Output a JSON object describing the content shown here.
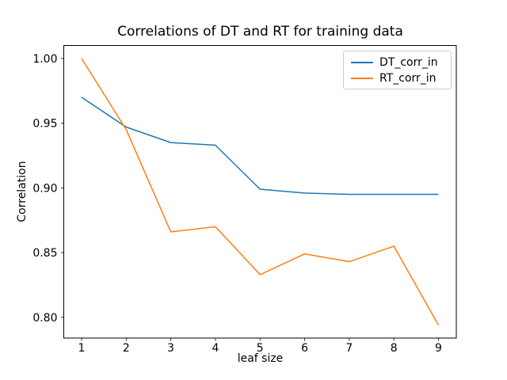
{
  "figure": {
    "background": "#ffffff",
    "axes_edge_color": "#000000",
    "text_color": "#000000",
    "legend_border_color": "#cccccc"
  },
  "chart_data": {
    "type": "line",
    "title": "Correlations of DT and RT for training data",
    "xlabel": "leaf size",
    "ylabel": "Correlation",
    "x": [
      1,
      2,
      3,
      4,
      5,
      6,
      7,
      8,
      9
    ],
    "series": [
      {
        "name": "DT_corr_in",
        "color": "#1f77b4",
        "values": [
          0.97,
          0.947,
          0.935,
          0.933,
          0.899,
          0.896,
          0.895,
          0.895,
          0.895
        ]
      },
      {
        "name": "RT_corr_in",
        "color": "#ff7f0e",
        "values": [
          1.0,
          0.945,
          0.866,
          0.87,
          0.833,
          0.849,
          0.843,
          0.855,
          0.794
        ]
      }
    ],
    "xlim": [
      0.6,
      9.4
    ],
    "ylim": [
      0.784,
      1.01
    ],
    "x_ticks": [
      1,
      2,
      3,
      4,
      5,
      6,
      7,
      8,
      9
    ],
    "x_tick_labels": [
      "1",
      "2",
      "3",
      "4",
      "5",
      "6",
      "7",
      "8",
      "9"
    ],
    "y_ticks": [
      0.8,
      0.85,
      0.9,
      0.95,
      1.0
    ],
    "y_tick_labels": [
      "0.80",
      "0.85",
      "0.90",
      "0.95",
      "1.00"
    ],
    "legend_position": "upper right",
    "grid": false,
    "line_width": 1.5
  }
}
